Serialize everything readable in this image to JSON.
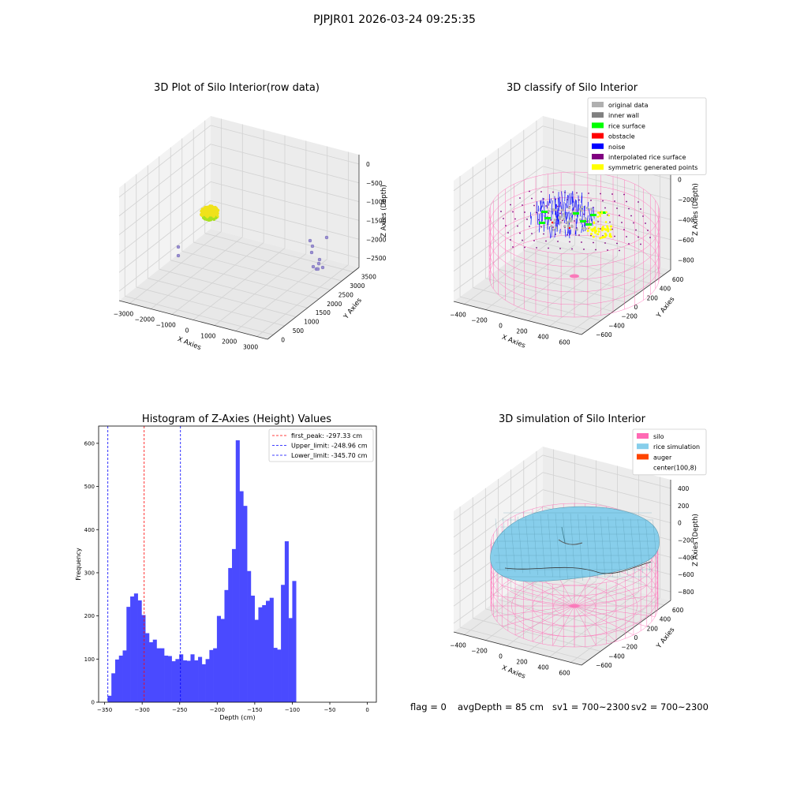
{
  "figure": {
    "title": "PJPJR01 2026-03-24 09:25:35"
  },
  "status_line": {
    "flag": "flag = 0",
    "avg_depth": "avgDepth = 85 cm",
    "sv1": "sv1 = 700~2300",
    "sv2": "sv2 = 700~2300"
  },
  "colors": {
    "original_data": "#b0b0b0",
    "inner_wall": "#808080",
    "rice_surface": "#00ff00",
    "obstacle": "#ff0000",
    "noise": "#0000ff",
    "interpolated_rice_surface": "#800080",
    "symmetric_generated_points": "#ffff00",
    "silo": "#ff69b4",
    "rice_simulation": "#87ceeb",
    "auger": "#ff4500",
    "histogram_bar": "#4a4aff"
  },
  "chart_data": [
    {
      "type": "scatter",
      "projection": "3d",
      "title": "3D Plot of Silo Interior(row data)",
      "xlabel": "X Axies",
      "ylabel": "Y Axies",
      "zlabel": "Z Axies (Depth)",
      "x_ticks": [
        "−3000",
        "−2000",
        "−1000",
        "0",
        "1000",
        "2000",
        "3000"
      ],
      "y_ticks": [
        "0",
        "500",
        "1000",
        "1500",
        "2000",
        "2500",
        "3000",
        "3500"
      ],
      "z_ticks": [
        "0",
        "−500",
        "−1000",
        "−1500",
        "−2000",
        "−2500"
      ],
      "grid": true
    },
    {
      "type": "scatter",
      "projection": "3d",
      "title": "3D classify of Silo Interior",
      "xlabel": "X Axies",
      "ylabel": "Y Axies",
      "zlabel": "Z Axies (Depth)",
      "x_ticks": [
        "−400",
        "−200",
        "0",
        "200",
        "400",
        "600"
      ],
      "y_ticks": [
        "−600",
        "−400",
        "−200",
        "0",
        "200",
        "400",
        "600"
      ],
      "z_ticks": [
        "200",
        "0",
        "−200",
        "−400",
        "−600",
        "−800"
      ],
      "legend_position": "top-right",
      "legend": [
        {
          "label": "original data",
          "color_key": "original_data"
        },
        {
          "label": "inner wall",
          "color_key": "inner_wall"
        },
        {
          "label": "rice surface",
          "color_key": "rice_surface"
        },
        {
          "label": "obstacle",
          "color_key": "obstacle"
        },
        {
          "label": "noise",
          "color_key": "noise"
        },
        {
          "label": "interpolated rice surface",
          "color_key": "interpolated_rice_surface"
        },
        {
          "label": "symmetric generated points",
          "color_key": "symmetric_generated_points"
        }
      ],
      "grid": true
    },
    {
      "type": "bar",
      "title": "Histogram of Z-Axies (Height) Values",
      "xlabel": "Depth (cm)",
      "ylabel": "Frequency",
      "xlim": [
        -358,
        12
      ],
      "ylim": [
        0,
        640
      ],
      "x_ticks": [
        -350,
        -300,
        -250,
        -200,
        -150,
        -100,
        -50,
        0
      ],
      "y_ticks": [
        0,
        100,
        200,
        300,
        400,
        500,
        600
      ],
      "bin_start": -346,
      "bin_width": 5.02,
      "values": [
        15,
        67,
        99,
        108,
        120,
        221,
        245,
        252,
        236,
        202,
        160,
        139,
        145,
        125,
        125,
        108,
        107,
        95,
        100,
        111,
        97,
        96,
        111,
        97,
        105,
        88,
        100,
        121,
        125,
        200,
        193,
        260,
        311,
        355,
        607,
        489,
        455,
        304,
        247,
        191,
        220,
        225,
        235,
        242,
        126,
        122,
        272,
        373,
        195,
        281
      ],
      "vlines": [
        {
          "label": "first_peak: -297.33 cm",
          "x": -297.33,
          "color": "#ff0000"
        },
        {
          "label": "Upper_limit: -248.96 cm",
          "x": -248.96,
          "color": "#0000ff"
        },
        {
          "label": "Lower_limit: -345.70 cm",
          "x": -345.7,
          "color": "#0000ff"
        }
      ],
      "legend_position": "top-right",
      "grid": false
    },
    {
      "type": "surface",
      "projection": "3d",
      "title": "3D simulation of Silo Interior",
      "xlabel": "X Axies",
      "ylabel": "Y Axies",
      "zlabel": "Z Axies (Depth)",
      "x_ticks": [
        "−400",
        "−200",
        "0",
        "200",
        "400",
        "600"
      ],
      "y_ticks": [
        "−600",
        "−400",
        "−200",
        "0",
        "200",
        "400",
        "600"
      ],
      "z_ticks": [
        "400",
        "200",
        "0",
        "−200",
        "−400",
        "−600",
        "−800"
      ],
      "legend_position": "top-right",
      "legend": [
        {
          "label": "silo",
          "color_key": "silo"
        },
        {
          "label": "rice simulation",
          "color_key": "rice_simulation"
        },
        {
          "label": "auger",
          "color_key": "auger"
        },
        {
          "label": "center(100,8)",
          "color_key": ""
        }
      ],
      "grid": true
    }
  ]
}
